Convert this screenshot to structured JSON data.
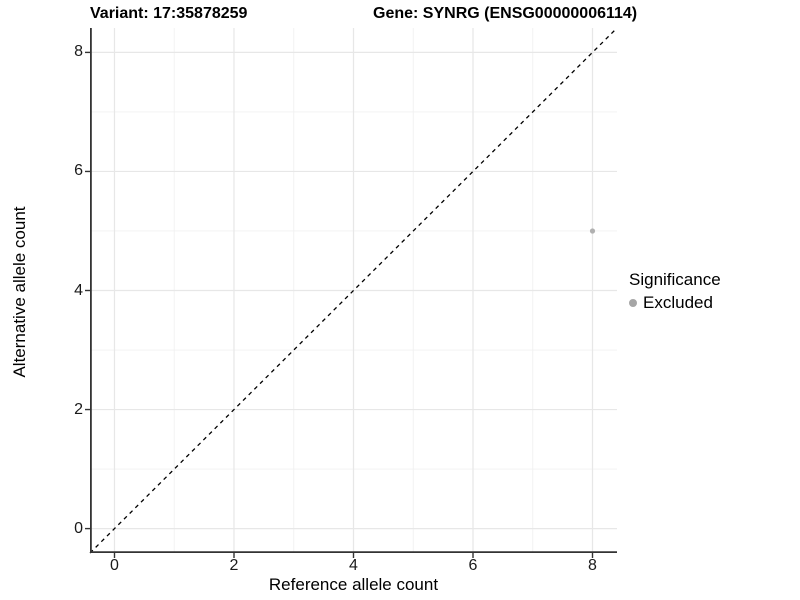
{
  "titles": {
    "left": "Variant: 17:35878259",
    "right": "Gene: SYNRG (ENSG00000006114)"
  },
  "legend": {
    "title": "Significance",
    "items": [
      {
        "label": "Excluded",
        "color": "#a6a6a6"
      }
    ]
  },
  "chart_data": {
    "type": "scatter",
    "title": "Variant: 17:35878259  /  Gene: SYNRG (ENSG00000006114)",
    "xlabel": "Reference allele count",
    "ylabel": "Alternative allele count",
    "xlim": [
      -0.41,
      8.41
    ],
    "ylim": [
      -0.41,
      8.41
    ],
    "xticks": [
      0,
      2,
      4,
      6,
      8
    ],
    "yticks": [
      0,
      2,
      4,
      6,
      8
    ],
    "minor_gridlines": [
      1,
      3,
      5,
      7
    ],
    "grid": {
      "major_color": "#e7e7e7",
      "minor_color": "#f1f1f1"
    },
    "axis_color": "#333333",
    "reference_line": {
      "type": "identity y=x",
      "style": "dashed",
      "color": "#000000"
    },
    "series": [
      {
        "name": "Excluded",
        "color": "#b0b0b0",
        "points": [
          {
            "x": 8,
            "y": 5
          }
        ]
      }
    ],
    "legend_position": "right"
  }
}
